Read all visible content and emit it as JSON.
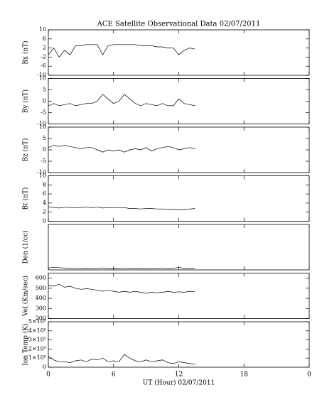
{
  "chart_data": [
    {
      "type": "line",
      "title": "ACE Satellite Observational Data   02/07/2011",
      "y_label": "Bx (nT)",
      "xlim": [
        0,
        24
      ],
      "xticks": [
        0,
        6,
        12,
        18,
        {
          "value": 24,
          "label": "0"
        }
      ],
      "ylim": [
        -10,
        10
      ],
      "yticks": [
        10,
        6,
        2,
        -2,
        -6,
        -10
      ],
      "x": [
        0,
        0.5,
        1,
        1.5,
        2,
        2.5,
        3,
        3.5,
        4,
        4.5,
        5,
        5.5,
        6,
        6.5,
        7,
        7.5,
        8,
        8.5,
        9,
        9.5,
        10,
        10.5,
        11,
        11.5,
        12,
        12.5,
        13,
        13.5
      ],
      "values": [
        -1,
        2,
        -2,
        1,
        -1,
        3,
        3,
        3.5,
        3.5,
        3.5,
        -1,
        3,
        3.5,
        3.5,
        3.5,
        3.5,
        3.5,
        3,
        3,
        3,
        2.5,
        2.5,
        2,
        2,
        -1,
        1,
        2,
        1.5
      ]
    },
    {
      "type": "line",
      "y_label": "By (nT)",
      "xlim": [
        0,
        24
      ],
      "xticks": [
        0,
        6,
        12,
        18,
        {
          "value": 24,
          "label": "0"
        }
      ],
      "ylim": [
        -10,
        10
      ],
      "yticks": [
        10,
        5,
        0,
        -5,
        -10
      ],
      "x": [
        0,
        0.5,
        1,
        1.5,
        2,
        2.5,
        3,
        3.5,
        4,
        4.5,
        5,
        5.5,
        6,
        6.5,
        7,
        7.5,
        8,
        8.5,
        9,
        9.5,
        10,
        10.5,
        11,
        11.5,
        12,
        12.5,
        13,
        13.5
      ],
      "values": [
        -2,
        -1,
        -2,
        -1.5,
        -1,
        -2,
        -1.5,
        -1,
        -1,
        0,
        3,
        1,
        -1,
        0,
        3,
        1,
        -1,
        -2,
        -1,
        -1.5,
        -2,
        -1,
        -2,
        -2,
        1,
        -1,
        -1.5,
        -2
      ]
    },
    {
      "type": "line",
      "y_label": "Bz (nT)",
      "xlim": [
        0,
        24
      ],
      "xticks": [
        0,
        6,
        12,
        18,
        {
          "value": 24,
          "label": "0"
        }
      ],
      "ylim": [
        -10,
        10
      ],
      "yticks": [
        10,
        5,
        0,
        -5,
        -10
      ],
      "x": [
        0,
        0.5,
        1,
        1.5,
        2,
        2.5,
        3,
        3.5,
        4,
        4.5,
        5,
        5.5,
        6,
        6.5,
        7,
        7.5,
        8,
        8.5,
        9,
        9.5,
        10,
        10.5,
        11,
        11.5,
        12,
        12.5,
        13,
        13.5
      ],
      "values": [
        1,
        2,
        1.5,
        2,
        1.5,
        1,
        0.5,
        1,
        1,
        0,
        -1,
        0,
        -0.5,
        0,
        -1,
        0,
        0.5,
        0,
        1,
        -0.5,
        0.5,
        1,
        1.5,
        1,
        0,
        0.5,
        1,
        0.5
      ]
    },
    {
      "type": "line",
      "y_label": "Bt (nT)",
      "xlim": [
        0,
        24
      ],
      "xticks": [
        0,
        6,
        12,
        18,
        {
          "value": 24,
          "label": "0"
        }
      ],
      "ylim": [
        0,
        10
      ],
      "yticks": [
        0,
        2,
        4,
        6,
        8,
        10
      ],
      "x": [
        0,
        0.5,
        1,
        1.5,
        2,
        2.5,
        3,
        3.5,
        4,
        4.5,
        5,
        5.5,
        6,
        6.5,
        7,
        7.5,
        8,
        8.5,
        9,
        9.5,
        10,
        10.5,
        11,
        11.5,
        12,
        12.5,
        13,
        13.5
      ],
      "values": [
        3.2,
        3,
        2.9,
        3.1,
        3,
        3,
        3,
        3.1,
        3,
        3.1,
        2.9,
        3,
        3,
        3,
        3,
        2.8,
        2.8,
        2.7,
        2.8,
        2.8,
        2.7,
        2.7,
        2.6,
        2.6,
        2.5,
        2.6,
        2.7,
        2.8
      ]
    },
    {
      "type": "line",
      "y_label": "Den (1/cc)",
      "xlim": [
        0,
        24
      ],
      "xticks": [
        0,
        6,
        12,
        18,
        {
          "value": 24,
          "label": "0"
        }
      ],
      "ylim": [
        0,
        20
      ],
      "x": [
        0,
        0.5,
        1,
        1.5,
        2,
        2.5,
        3,
        3.5,
        4,
        4.5,
        5,
        5.5,
        6,
        6.5,
        7,
        7.5,
        8,
        8.5,
        9,
        9.5,
        10,
        10.5,
        11,
        11.5,
        12,
        12.5,
        13,
        13.5
      ],
      "values": [
        0.8,
        1.2,
        1,
        0.8,
        0.6,
        0.7,
        0.5,
        0.6,
        0.5,
        0.6,
        0.8,
        0.5,
        0.6,
        0.5,
        0.7,
        0.6,
        0.5,
        0.6,
        0.5,
        0.5,
        0.6,
        0.7,
        0.5,
        0.6,
        1.2,
        0.5,
        0.6,
        0.5
      ]
    },
    {
      "type": "line",
      "y_label": "Vel (Km/sec)",
      "xlim": [
        0,
        24
      ],
      "xticks": [
        0,
        6,
        12,
        18,
        {
          "value": 24,
          "label": "0"
        }
      ],
      "ylim": [
        200,
        650
      ],
      "yticks": [
        200,
        300,
        400,
        500,
        600
      ],
      "x": [
        0,
        0.5,
        1,
        1.5,
        2,
        2.5,
        3,
        3.5,
        4,
        4.5,
        5,
        5.5,
        6,
        6.5,
        7,
        7.5,
        8,
        8.5,
        9,
        9.5,
        10,
        10.5,
        11,
        11.5,
        12,
        12.5,
        13,
        13.5
      ],
      "values": [
        530,
        520,
        540,
        510,
        520,
        500,
        490,
        495,
        490,
        480,
        470,
        480,
        470,
        460,
        470,
        460,
        470,
        460,
        450,
        460,
        455,
        460,
        470,
        460,
        465,
        460,
        470,
        465
      ]
    },
    {
      "type": "line",
      "y_label": "Ion Temp (K)",
      "x_label": "UT (Hour)  02/07/2011",
      "xlim": [
        0,
        24
      ],
      "xticks": [
        0,
        6,
        12,
        18,
        {
          "value": 24,
          "label": "0"
        }
      ],
      "ylim": [
        0,
        500000
      ],
      "yticks": [
        0,
        {
          "value": 100000,
          "label": "1×10⁵"
        },
        {
          "value": 200000,
          "label": "2×10⁵"
        },
        {
          "value": 300000,
          "label": "3×10⁵"
        },
        {
          "value": 400000,
          "label": "4×10⁵"
        },
        {
          "value": 500000,
          "label": "5×10⁵"
        }
      ],
      "x": [
        0,
        0.5,
        1,
        1.5,
        2,
        2.5,
        3,
        3.5,
        4,
        4.5,
        5,
        5.5,
        6,
        6.5,
        7,
        7.5,
        8,
        8.5,
        9,
        9.5,
        10,
        10.5,
        11,
        11.5,
        12,
        12.5,
        13,
        13.5
      ],
      "values": [
        120000,
        80000,
        60000,
        60000,
        50000,
        70000,
        80000,
        60000,
        90000,
        80000,
        100000,
        60000,
        70000,
        60000,
        140000,
        100000,
        70000,
        60000,
        80000,
        60000,
        70000,
        80000,
        50000,
        40000,
        60000,
        50000,
        40000,
        30000
      ]
    }
  ]
}
